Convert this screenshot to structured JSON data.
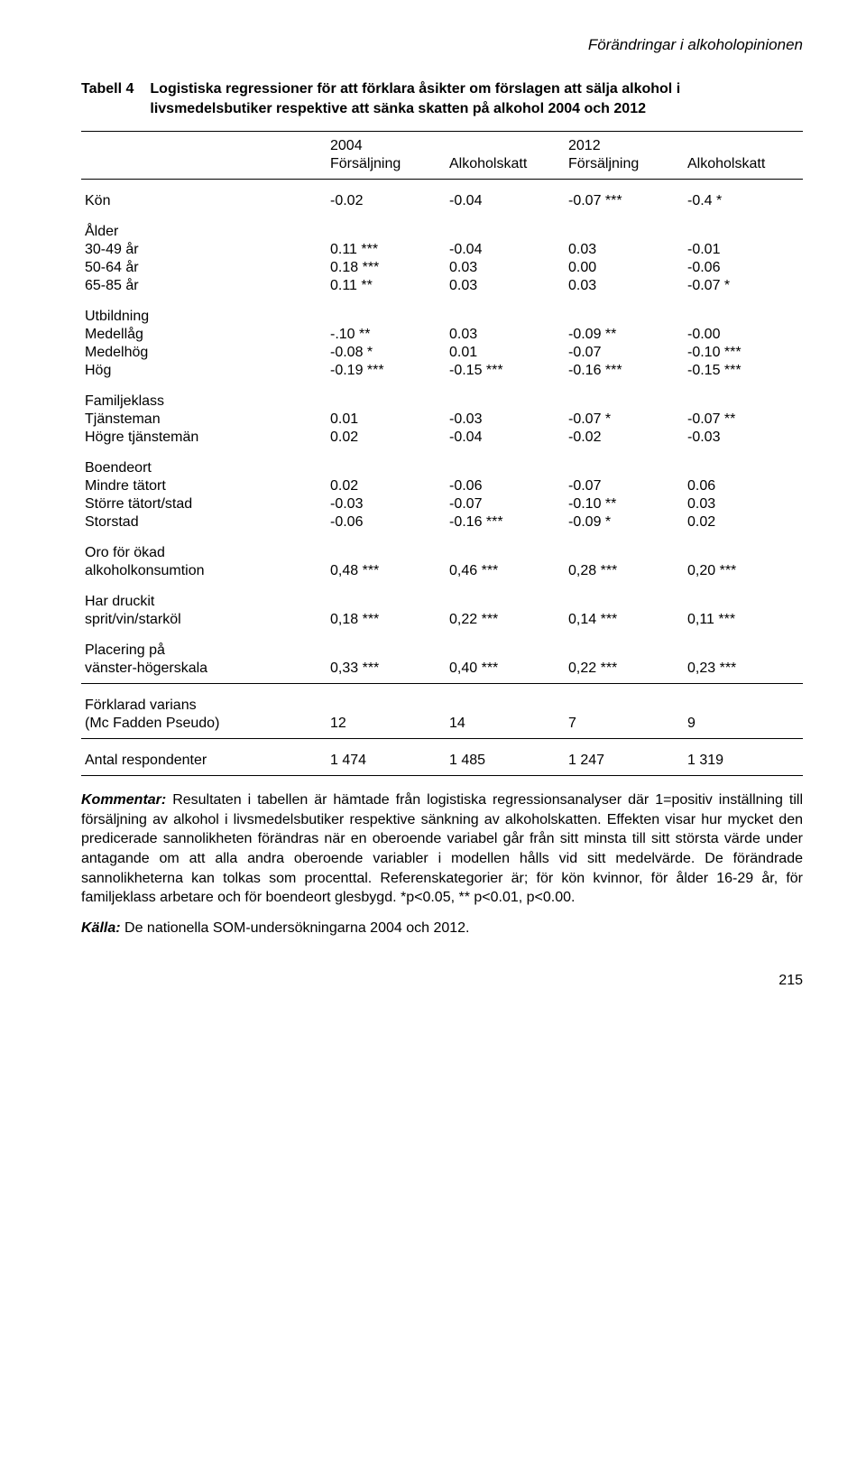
{
  "running_head": "Förändringar i alkoholopinionen",
  "caption": {
    "label": "Tabell 4",
    "text": "Logistiska regressioner för att förklara åsikter om förslagen att sälja alkohol i livsmedelsbutiker respektive att sänka skatten på alkohol 2004 och 2012"
  },
  "header": {
    "year1": "2004",
    "year2": "2012",
    "c1": "Försäljning",
    "c2": "Alkoholskatt",
    "c3": "Försäljning",
    "c4": "Alkoholskatt"
  },
  "rows": {
    "kon": {
      "label": "Kön",
      "v": [
        "-0.02",
        "-0.04",
        "-0.07 ***",
        "-0.4 *"
      ]
    },
    "alder_title": "Ålder",
    "a30": {
      "label": "30-49 år",
      "v": [
        "0.11 ***",
        "-0.04",
        "0.03",
        "-0.01"
      ]
    },
    "a50": {
      "label": "50-64 år",
      "v": [
        "0.18 ***",
        "0.03",
        "0.00",
        "-0.06"
      ]
    },
    "a65": {
      "label": "65-85 år",
      "v": [
        "0.11 **",
        "0.03",
        "0.03",
        "-0.07 *"
      ]
    },
    "utb_title": "Utbildning",
    "u1": {
      "label": "Medellåg",
      "v": [
        "-.10 **",
        "0.03",
        "-0.09 **",
        "-0.00"
      ]
    },
    "u2": {
      "label": "Medelhög",
      "v": [
        "-0.08 *",
        "0.01",
        "-0.07",
        "-0.10 ***"
      ]
    },
    "u3": {
      "label": "Hög",
      "v": [
        "-0.19 ***",
        "-0.15 ***",
        "-0.16 ***",
        "-0.15 ***"
      ]
    },
    "fam_title": "Familjeklass",
    "f1": {
      "label": "Tjänsteman",
      "v": [
        "0.01",
        "-0.03",
        "-0.07 *",
        "-0.07 **"
      ]
    },
    "f2": {
      "label": "Högre tjänstemän",
      "v": [
        "0.02",
        "-0.04",
        "-0.02",
        "-0.03"
      ]
    },
    "bo_title": "Boendeort",
    "b1": {
      "label": "Mindre tätort",
      "v": [
        "0.02",
        "-0.06",
        "-0.07",
        "0.06"
      ]
    },
    "b2": {
      "label": "Större tätort/stad",
      "v": [
        "-0.03",
        "-0.07",
        "-0.10 **",
        "0.03"
      ]
    },
    "b3": {
      "label": "Storstad",
      "v": [
        "-0.06",
        "-0.16 ***",
        "-0.09 *",
        "0.02"
      ]
    },
    "oro_title": "Oro för ökad",
    "oro": {
      "label": "alkoholkonsumtion",
      "v": [
        "0,48 ***",
        "0,46 ***",
        "0,28 ***",
        "0,20 ***"
      ]
    },
    "har_title": "Har druckit",
    "har": {
      "label": "sprit/vin/starköl",
      "v": [
        "0,18 ***",
        "0,22 ***",
        "0,14 ***",
        "0,11 ***"
      ]
    },
    "pla_title": "Placering på",
    "pla": {
      "label": "vänster-högerskala",
      "v": [
        "0,33 ***",
        "0,40 ***",
        "0,22 ***",
        "0,23 ***"
      ]
    },
    "var_title": "Förklarad varians",
    "var": {
      "label": "(Mc Fadden Pseudo)",
      "v": [
        "12",
        "14",
        "7",
        "9"
      ]
    },
    "ant": {
      "label": "Antal respondenter",
      "v": [
        "1 474",
        "1 485",
        "1 247",
        "1 319"
      ]
    }
  },
  "footnote": {
    "lead": "Kommentar:",
    "text": " Resultaten i tabellen är hämtade från logistiska regressionsanalyser där 1=positiv inställning till försäljning av alkohol i livsmedelsbutiker respektive sänkning av alkoholskatten. Effekten visar hur mycket den predicerade sannolikheten förändras när en oberoende variabel går från sitt minsta till sitt största värde under antagande om att alla andra oberoende variabler i modellen hålls vid sitt medelvärde. De förändrade sannolikheterna kan tolkas som procenttal. Referenskategorier är; för kön kvinnor, för ålder 16-29 år, för familjeklass arbetare och för boendeort glesbygd. *p<0.05,  ** p<0.01, p<0.00."
  },
  "source": {
    "lead": "Källa:",
    "text": " De nationella SOM-undersökningarna 2004 och 2012."
  },
  "page_number": "215"
}
